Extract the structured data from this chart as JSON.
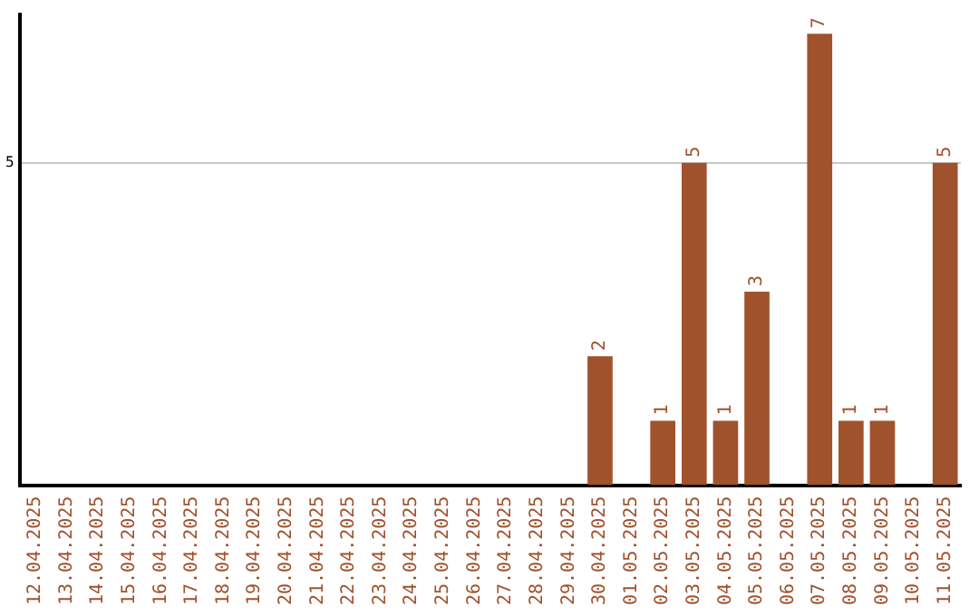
{
  "chart_data": {
    "type": "bar",
    "categories": [
      "12.04.2025",
      "13.04.2025",
      "14.04.2025",
      "15.04.2025",
      "16.04.2025",
      "17.04.2025",
      "18.04.2025",
      "19.04.2025",
      "20.04.2025",
      "21.04.2025",
      "22.04.2025",
      "23.04.2025",
      "24.04.2025",
      "25.04.2025",
      "26.04.2025",
      "27.04.2025",
      "28.04.2025",
      "29.04.2025",
      "30.04.2025",
      "01.05.2025",
      "02.05.2025",
      "03.05.2025",
      "04.05.2025",
      "05.05.2025",
      "06.05.2025",
      "07.05.2025",
      "08.05.2025",
      "09.05.2025",
      "10.05.2025",
      "11.05.2025"
    ],
    "values": [
      null,
      null,
      null,
      null,
      null,
      null,
      null,
      null,
      null,
      null,
      null,
      null,
      null,
      null,
      null,
      null,
      null,
      null,
      2,
      null,
      1,
      5,
      1,
      3,
      null,
      7,
      1,
      1,
      null,
      5
    ],
    "color": "#a0522d",
    "ylim": [
      0,
      7.3
    ],
    "yticks": [
      5
    ],
    "grid": "y",
    "legend": false,
    "data_labels": true
  }
}
